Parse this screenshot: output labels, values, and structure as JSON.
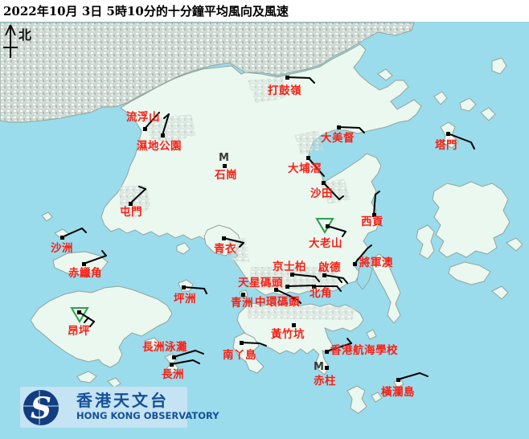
{
  "title": "2022年10月 3日 5時10分的十分鐘平均風向及風速",
  "compass": {
    "label": "北"
  },
  "logo": {
    "chinese": "香港天文台",
    "english": "HONG KONG OBSERVATORY"
  },
  "m_symbol": "M",
  "colors": {
    "sea": "#9adcec",
    "land": "#eaf8f0",
    "coast": "#93a39c",
    "urban": "#cfd9d3",
    "label_red": "#f92015",
    "barb": "#000000",
    "triangle_green": "#2da04a",
    "logo_navy": "#123d80",
    "logo_bg": "#c4e3f3",
    "logo_text": "#155099",
    "title_black": "#000000"
  },
  "stations": [
    {
      "name": "打鼓嶺",
      "label": [
        333,
        117
      ],
      "dot": [
        357,
        96
      ],
      "barb": {
        "shaft": [
          357,
          96,
          385,
          97
        ],
        "feathers": [
          [
            385,
            97,
            391,
            103
          ]
        ]
      }
    },
    {
      "name": "流浮山",
      "label": [
        157,
        150
      ],
      "dot": [
        180,
        160
      ],
      "barb": {
        "shaft": [
          180,
          160,
          198,
          140
        ],
        "feathers": []
      }
    },
    {
      "name": "濕地公園",
      "label": [
        170,
        186
      ],
      "dot": [
        202,
        168
      ],
      "barb": {
        "shaft": [
          202,
          168,
          210,
          142
        ],
        "feathers": [
          [
            210,
            142,
            204,
            147
          ]
        ]
      }
    },
    {
      "name": "石崗",
      "label": [
        267,
        222
      ],
      "m": [
        272,
        200
      ],
      "dot": [
        279,
        206
      ],
      "barb": null
    },
    {
      "name": "大美督",
      "label": [
        399,
        176
      ],
      "dot": [
        421,
        158
      ],
      "barb": {
        "shaft": [
          421,
          158,
          447,
          159
        ],
        "feathers": [
          [
            447,
            159,
            453,
            165
          ]
        ]
      }
    },
    {
      "name": "塔門",
      "label": [
        541,
        185
      ],
      "dot": [
        557,
        166
      ],
      "barb": {
        "shaft": [
          557,
          166,
          586,
          177
        ],
        "feathers": [
          [
            586,
            177,
            590,
            185
          ]
        ]
      }
    },
    {
      "name": "大埔滘",
      "label": [
        358,
        214
      ],
      "dot": [
        383,
        196
      ],
      "barb": {
        "shaft": [
          383,
          196,
          403,
          219
        ],
        "feathers": []
      }
    },
    {
      "name": "沙田",
      "label": [
        386,
        245
      ],
      "dot": [
        402,
        227
      ],
      "barb": {
        "shaft": [
          402,
          227,
          422,
          248
        ],
        "feathers": [
          [
            422,
            248,
            427,
            244
          ]
        ]
      }
    },
    {
      "name": "屯門",
      "label": [
        149,
        268
      ],
      "dot": [
        162,
        253
      ],
      "barb": {
        "shaft": [
          162,
          253,
          181,
          235
        ],
        "feathers": [
          [
            181,
            235,
            173,
            232
          ]
        ]
      }
    },
    {
      "name": "沙洲",
      "label": [
        63,
        313
      ],
      "dot": [
        77,
        295
      ],
      "barb": {
        "shaft": [
          77,
          295,
          102,
          284
        ],
        "feathers": [
          [
            102,
            284,
            107,
            289
          ]
        ]
      }
    },
    {
      "name": "赤鱲角",
      "label": [
        85,
        344
      ],
      "dot": [
        104,
        328
      ],
      "barb": {
        "shaft": [
          104,
          328,
          132,
          318
        ],
        "feathers": [
          [
            132,
            318,
            127,
            312
          ]
        ]
      }
    },
    {
      "name": "青衣",
      "label": [
        266,
        314
      ],
      "dot": [
        278,
        296
      ],
      "barb": {
        "shaft": [
          278,
          296,
          303,
          302
        ],
        "feathers": [
          [
            303,
            302,
            298,
            307
          ]
        ]
      }
    },
    {
      "name": "坪洲",
      "label": [
        216,
        376
      ],
      "dot": [
        228,
        357
      ],
      "barb": {
        "shaft": [
          228,
          357,
          254,
          359
        ],
        "feathers": [
          [
            254,
            359,
            257,
            365
          ]
        ]
      }
    },
    {
      "name": "大老山",
      "label": [
        384,
        307
      ],
      "triangle": [
        404,
        272
      ],
      "dot": [
        407,
        281
      ],
      "barb": {
        "shaft": [
          407,
          281,
          430,
          288
        ],
        "feathers": [
          [
            430,
            288,
            426,
            294
          ]
        ]
      }
    },
    {
      "name": "西貢",
      "label": [
        449,
        280
      ],
      "dot": [
        465,
        267
      ],
      "barb": {
        "shaft": [
          465,
          267,
          467,
          242
        ],
        "feathers": [
          [
            467,
            242,
            472,
            238
          ]
        ]
      }
    },
    {
      "name": "將軍澳",
      "label": [
        447,
        331
      ],
      "dot": [
        441,
        328
      ],
      "barb": {
        "shaft": [
          441,
          328,
          457,
          309
        ],
        "feathers": [
          [
            457,
            309,
            462,
            305
          ]
        ]
      }
    },
    {
      "name": "京士柏",
      "label": [
        339,
        336
      ],
      "dot": [
        363,
        341
      ],
      "barb": {
        "shaft": [
          363,
          341,
          392,
          344
        ],
        "feathers": [
          [
            392,
            344,
            397,
            350
          ]
        ]
      }
    },
    {
      "name": "啟德",
      "label": [
        396,
        337
      ],
      "dot": [
        403,
        342
      ],
      "barb": {
        "shaft": [
          403,
          342,
          427,
          346
        ],
        "feathers": [
          [
            427,
            346,
            432,
            352
          ],
          [
            420,
            345,
            425,
            351
          ]
        ]
      }
    },
    {
      "name": "天星碼頭",
      "label": [
        296,
        356
      ],
      "dot": [
        357,
        356
      ],
      "barb": {
        "shaft": [
          357,
          356,
          389,
          355
        ],
        "feathers": []
      }
    },
    {
      "name": "中環碼頭",
      "label": [
        317,
        380
      ],
      "dot": [
        343,
        360
      ],
      "barb": {
        "shaft": [
          343,
          360,
          369,
          372
        ],
        "feathers": [
          [
            369,
            372,
            374,
            377
          ],
          [
            362,
            369,
            367,
            374
          ]
        ]
      }
    },
    {
      "name": "北角",
      "label": [
        385,
        369
      ],
      "dot": [
        390,
        356
      ],
      "barb": {
        "shaft": [
          390,
          356,
          419,
          356
        ],
        "feathers": [
          [
            419,
            356,
            424,
            362
          ]
        ]
      }
    },
    {
      "name": "青洲",
      "label": [
        287,
        381
      ],
      "dot": [
        302,
        366
      ],
      "barb": null
    },
    {
      "name": "黃竹坑",
      "label": [
        337,
        420
      ],
      "dot": [
        365,
        404
      ],
      "barb": null
    },
    {
      "name": "香港航海學校",
      "label": [
        411,
        440
      ],
      "dot": [
        406,
        437
      ],
      "barb": {
        "shaft": [
          406,
          437,
          437,
          427
        ],
        "feathers": [
          [
            437,
            427,
            432,
            421
          ]
        ]
      }
    },
    {
      "name": "赤柱",
      "label": [
        390,
        478
      ],
      "m": [
        390,
        460
      ],
      "dot": [
        406,
        457
      ],
      "barb": null
    },
    {
      "name": "橫瀾島",
      "label": [
        474,
        492
      ],
      "dot": [
        495,
        472
      ],
      "barb": {
        "shaft": [
          495,
          472,
          522,
          464
        ],
        "feathers": [
          [
            522,
            464,
            532,
            468
          ]
        ]
      }
    },
    {
      "name": "昂坪",
      "label": [
        84,
        416
      ],
      "triangle": [
        99,
        383
      ],
      "dot": [
        98,
        388
      ],
      "barb": {
        "shaft": [
          98,
          388,
          117,
          400
        ],
        "feathers": [
          [
            117,
            400,
            112,
            406
          ],
          [
            110,
            395,
            105,
            401
          ]
        ]
      }
    },
    {
      "name": "長洲泳灘",
      "label": [
        177,
        436
      ],
      "dot": [
        216,
        444
      ],
      "barb": {
        "shaft": [
          216,
          444,
          243,
          436
        ],
        "feathers": [
          [
            243,
            436,
            253,
            440
          ]
        ]
      }
    },
    {
      "name": "長洲",
      "label": [
        201,
        470
      ],
      "dot": [
        213,
        453
      ],
      "barb": {
        "shaft": [
          213,
          453,
          240,
          448
        ],
        "feathers": [
          [
            240,
            448,
            248,
            452
          ]
        ]
      }
    },
    {
      "name": "南丫島",
      "label": [
        277,
        446
      ],
      "dot": [
        300,
        426
      ],
      "barb": {
        "shaft": [
          300,
          426,
          323,
          427
        ],
        "feathers": [
          [
            323,
            427,
            331,
            430
          ]
        ]
      }
    }
  ]
}
